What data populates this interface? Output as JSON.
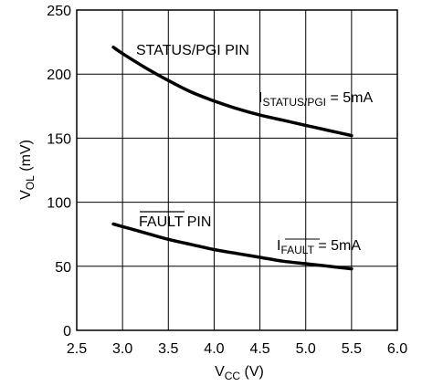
{
  "chart_data": {
    "type": "line",
    "xlabel": {
      "main": "V",
      "sub": "CC",
      "suffix": " (V)"
    },
    "ylabel": {
      "main": "V",
      "sub": "OL",
      "suffix": " (mV)"
    },
    "xlim": [
      2.5,
      6.0
    ],
    "ylim": [
      0,
      250
    ],
    "xticks": [
      "2.5",
      "3.0",
      "3.5",
      "4.0",
      "4.5",
      "5.0",
      "5.5",
      "6.0"
    ],
    "yticks": [
      "0",
      "50",
      "100",
      "150",
      "200",
      "250"
    ],
    "grid": true,
    "series": [
      {
        "name": "STATUS/PGI PIN",
        "x": [
          2.9,
          3.0,
          3.25,
          3.5,
          3.75,
          4.0,
          4.25,
          4.5,
          4.75,
          5.0,
          5.25,
          5.5
        ],
        "y": [
          221,
          216,
          205,
          195,
          186,
          179,
          173,
          168,
          164,
          160,
          156,
          152
        ]
      },
      {
        "name": "FAULT PIN",
        "x": [
          2.9,
          3.0,
          3.25,
          3.5,
          3.75,
          4.0,
          4.25,
          4.5,
          4.75,
          5.0,
          5.25,
          5.5
        ],
        "y": [
          83,
          81,
          76,
          71,
          67,
          63,
          60,
          57,
          54,
          52,
          50,
          48
        ]
      }
    ],
    "annotations": {
      "status_label": "STATUS/PGI PIN",
      "status_current": {
        "main": "I",
        "sub": "STATUS/PGI",
        "suffix": " = 5mA"
      },
      "fault_label": {
        "overline": "FAULT",
        "suffix": " PIN"
      },
      "fault_current": {
        "main": "I",
        "sub": "FAULT",
        "suffix": " = 5mA"
      }
    }
  }
}
